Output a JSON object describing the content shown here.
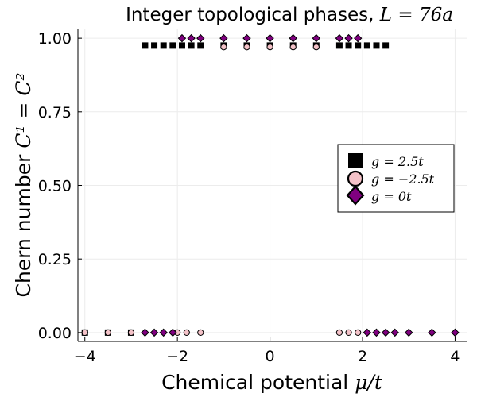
{
  "chart_data": {
    "type": "scatter",
    "title_prefix": "Integer topological phases, ",
    "title_math": "L = 76a",
    "xlabel_prefix": "Chemical potential ",
    "xlabel_math": "μ/t",
    "ylabel_prefix": "Chern number ",
    "ylabel_math": "C¹ = C²",
    "xlim": [
      -4.15,
      4.25
    ],
    "ylim": [
      -0.03,
      1.03
    ],
    "xticks": [
      -4,
      -2,
      0,
      2,
      4
    ],
    "xtick_labels": [
      "−4",
      "−2",
      "0",
      "2",
      "4"
    ],
    "yticks": [
      0,
      0.25,
      0.5,
      0.75,
      1.0
    ],
    "ytick_labels": [
      "0.00",
      "0.25",
      "0.50",
      "0.75",
      "1.00"
    ],
    "grid": true,
    "legend_position": "right",
    "series": [
      {
        "name": "g = 2.5t",
        "marker": "square",
        "color": "#000000",
        "points": [
          {
            "x": -4,
            "y": 0
          },
          {
            "x": -3.5,
            "y": 0
          },
          {
            "x": -3,
            "y": 0
          },
          {
            "x": -2.7,
            "y": 0.975
          },
          {
            "x": -2.5,
            "y": 0.975
          },
          {
            "x": -2.3,
            "y": 0.975
          },
          {
            "x": -2.1,
            "y": 0.975
          },
          {
            "x": -1.9,
            "y": 0.975
          },
          {
            "x": -1.7,
            "y": 0.975
          },
          {
            "x": -1.5,
            "y": 0.975
          },
          {
            "x": -1,
            "y": 0.975
          },
          {
            "x": -0.5,
            "y": 0.975
          },
          {
            "x": 0,
            "y": 0.975
          },
          {
            "x": 0.5,
            "y": 0.975
          },
          {
            "x": 1,
            "y": 0.975
          },
          {
            "x": 1.5,
            "y": 0.975
          },
          {
            "x": 1.7,
            "y": 0.975
          },
          {
            "x": 1.9,
            "y": 0.975
          },
          {
            "x": 2.1,
            "y": 0.975
          },
          {
            "x": 2.3,
            "y": 0.975
          },
          {
            "x": 2.5,
            "y": 0.975
          }
        ]
      },
      {
        "name": "g = −2.5t",
        "marker": "circle",
        "color": "#f4c2c8",
        "points": [
          {
            "x": -4,
            "y": 0
          },
          {
            "x": -3.5,
            "y": 0
          },
          {
            "x": -3,
            "y": 0
          },
          {
            "x": -2,
            "y": 0
          },
          {
            "x": -1.8,
            "y": 0
          },
          {
            "x": -1.5,
            "y": 0
          },
          {
            "x": -1,
            "y": 0.97
          },
          {
            "x": -0.5,
            "y": 0.97
          },
          {
            "x": 0,
            "y": 0.97
          },
          {
            "x": 0.5,
            "y": 0.97
          },
          {
            "x": 1,
            "y": 0.97
          },
          {
            "x": 1.5,
            "y": 0
          },
          {
            "x": 1.7,
            "y": 0
          },
          {
            "x": 1.9,
            "y": 0
          }
        ]
      },
      {
        "name": "g = 0t",
        "marker": "diamond",
        "color": "#800080",
        "points": [
          {
            "x": -2.7,
            "y": 0
          },
          {
            "x": -2.5,
            "y": 0
          },
          {
            "x": -2.3,
            "y": 0
          },
          {
            "x": -2.1,
            "y": 0
          },
          {
            "x": -1.9,
            "y": 1
          },
          {
            "x": -1.7,
            "y": 1
          },
          {
            "x": -1.5,
            "y": 1
          },
          {
            "x": -1,
            "y": 1
          },
          {
            "x": -0.5,
            "y": 1
          },
          {
            "x": 0,
            "y": 1
          },
          {
            "x": 0.5,
            "y": 1
          },
          {
            "x": 1,
            "y": 1
          },
          {
            "x": 1.5,
            "y": 1
          },
          {
            "x": 1.7,
            "y": 1
          },
          {
            "x": 1.9,
            "y": 1
          },
          {
            "x": 2.1,
            "y": 0
          },
          {
            "x": 2.3,
            "y": 0
          },
          {
            "x": 2.5,
            "y": 0
          },
          {
            "x": 2.7,
            "y": 0
          },
          {
            "x": 3,
            "y": 0
          },
          {
            "x": 3.5,
            "y": 0
          },
          {
            "x": 4,
            "y": 0
          }
        ]
      }
    ]
  }
}
